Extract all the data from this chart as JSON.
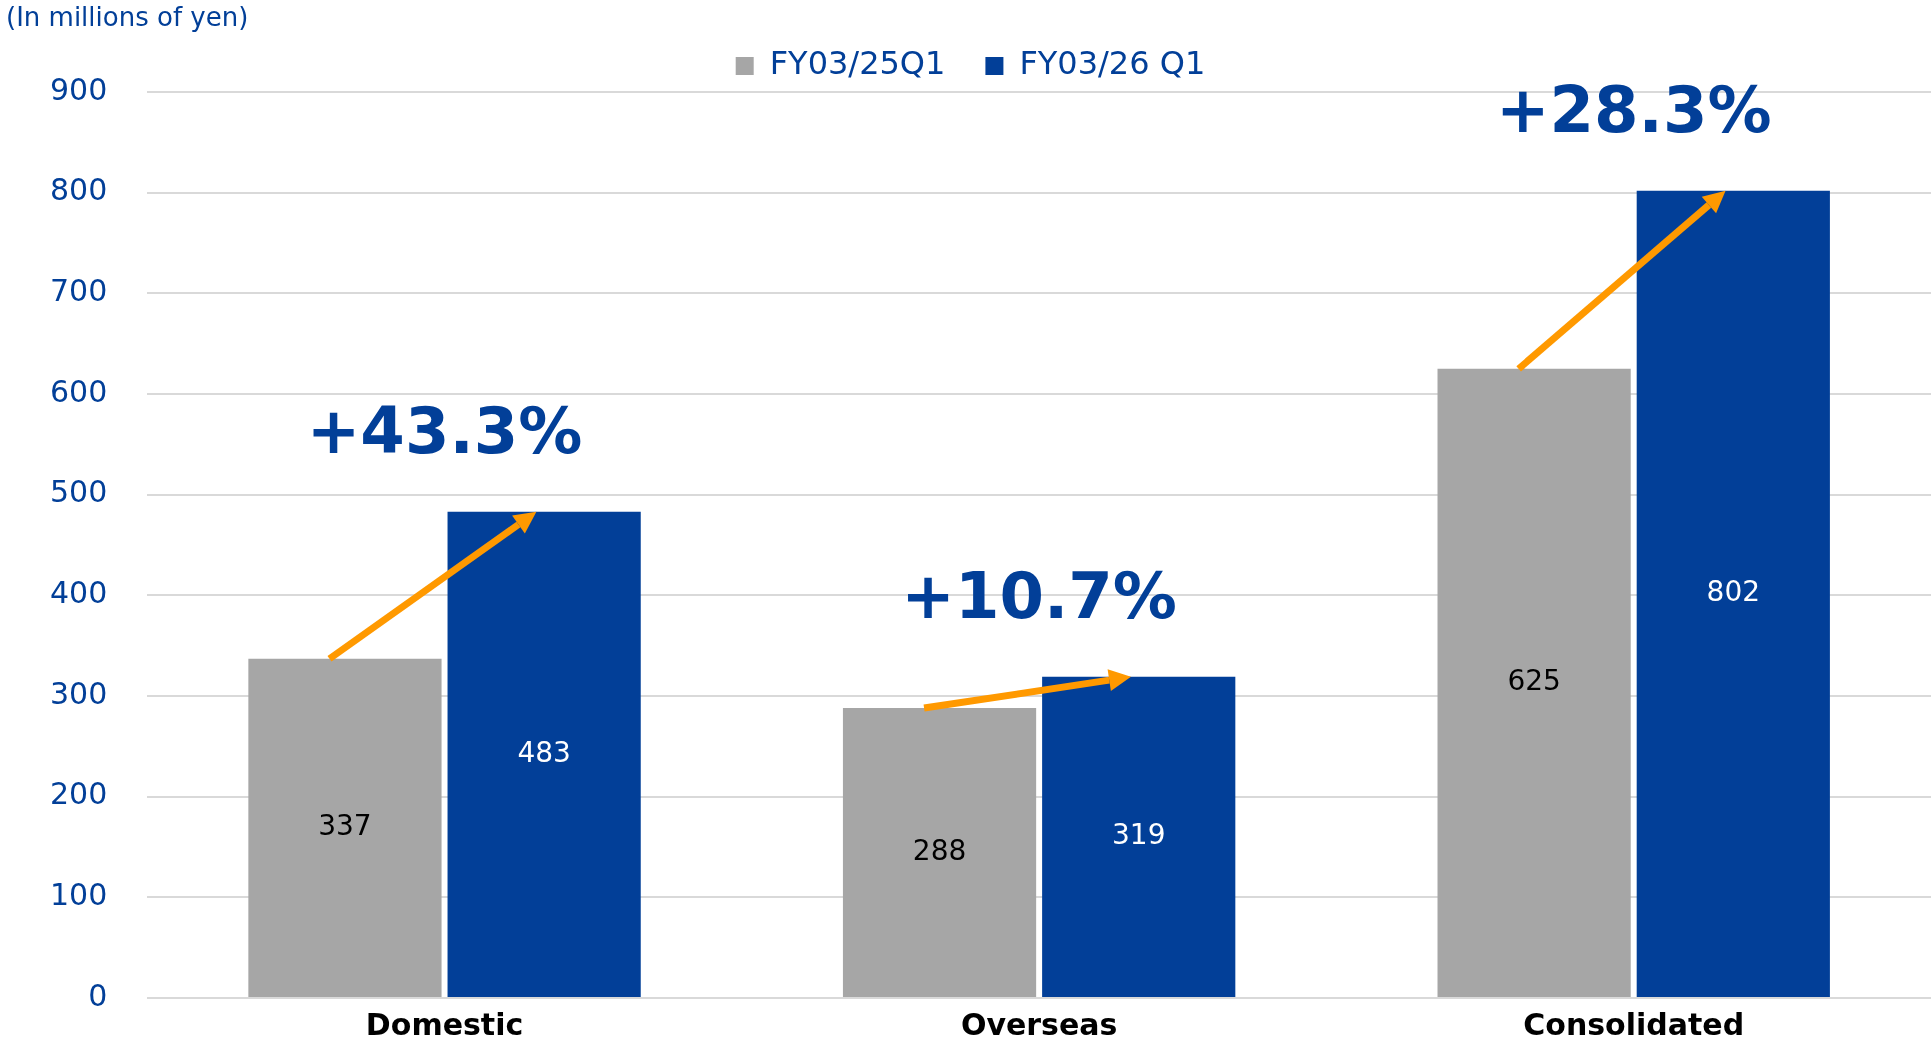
{
  "chart_data": {
    "type": "bar",
    "ylabel": "(In millions of yen)",
    "categories": [
      "Domestic",
      "Overseas",
      "Consolidated"
    ],
    "series": [
      {
        "name": "FY03/25Q1",
        "color": "#a6a6a6",
        "values": [
          337,
          288,
          625
        ]
      },
      {
        "name": "FY03/26 Q1",
        "color": "#023f98",
        "values": [
          483,
          319,
          802
        ]
      }
    ],
    "ylim": [
      0,
      900
    ],
    "yticks": [
      0,
      100,
      200,
      300,
      400,
      500,
      600,
      700,
      800,
      900
    ],
    "grid": "y",
    "legend": "top",
    "data_labels": true,
    "annotations": [
      "+43.3%",
      "+10.7%",
      "+28.3%"
    ]
  }
}
